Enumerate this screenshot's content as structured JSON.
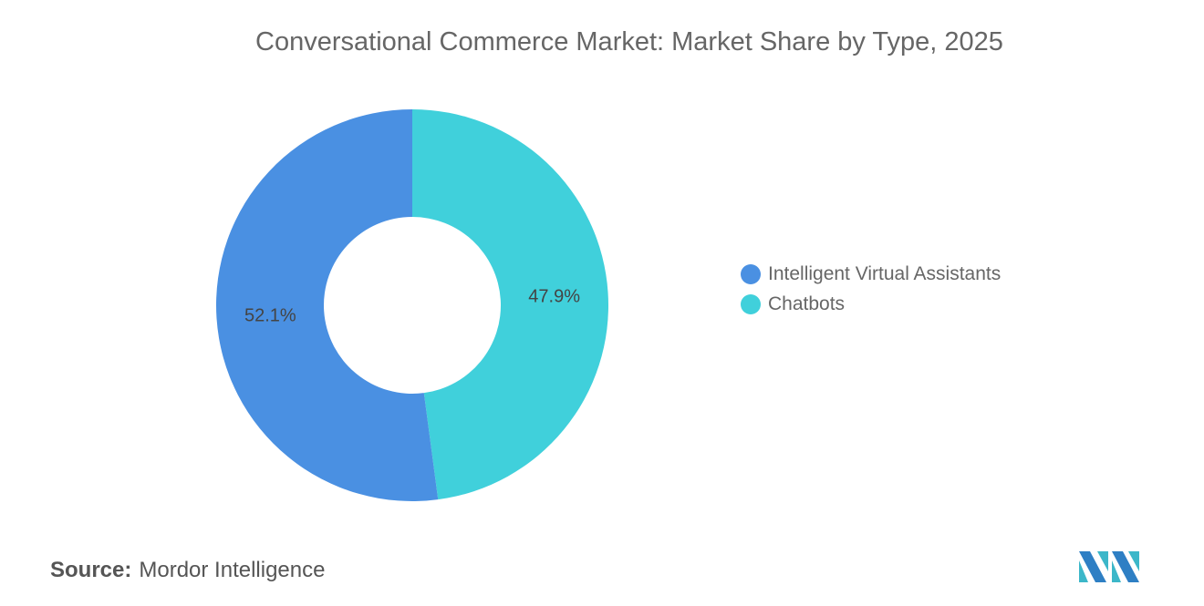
{
  "chart_data": {
    "type": "pie",
    "variant": "donut",
    "title": "Conversational Commerce Market: Market Share by Type, 2025",
    "categories": [
      "Intelligent Virtual Assistants",
      "Chatbots"
    ],
    "values": [
      52.1,
      47.9
    ],
    "data_labels": [
      "52.1%",
      "47.9%"
    ],
    "colors": [
      "#4a90e2",
      "#40d0db"
    ],
    "legend_position": "right"
  },
  "source": {
    "label": "Source:",
    "text": "Mordor Intelligence"
  }
}
